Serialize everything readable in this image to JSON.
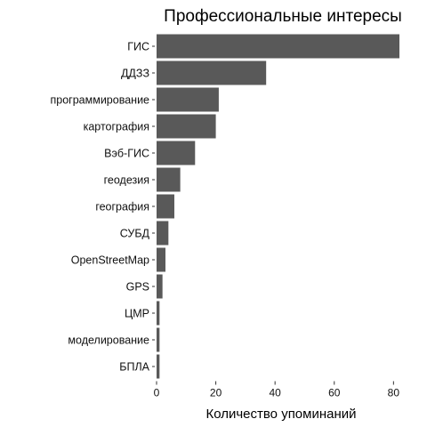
{
  "chart_data": {
    "type": "bar",
    "orientation": "horizontal",
    "title": "Профессиональные интересы",
    "xlabel": "Количество упоминаний",
    "ylabel": "",
    "categories": [
      "ГИС",
      "ДДЗЗ",
      "программирование",
      "картография",
      "Вэб-ГИС",
      "геодезия",
      "география",
      "СУБД",
      "OpenStreetMap",
      "GPS",
      "ЦМР",
      "моделирование",
      "БПЛА"
    ],
    "values": [
      82,
      37,
      21,
      20,
      13,
      8,
      6,
      4,
      3,
      2,
      1,
      1,
      1
    ],
    "xlim": [
      0,
      85
    ],
    "xticks": [
      0,
      20,
      40,
      60,
      80
    ],
    "grid": false,
    "bar_color": "#595959"
  }
}
